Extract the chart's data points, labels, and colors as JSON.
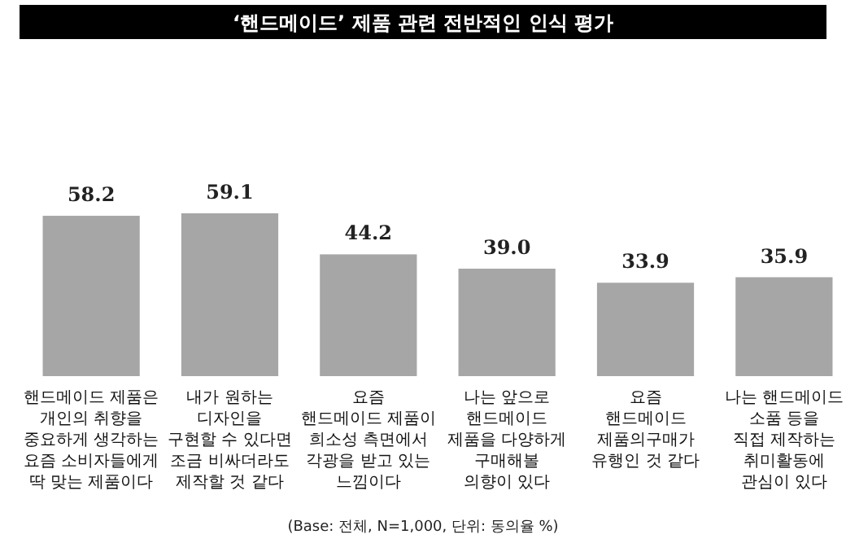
{
  "chart_data": {
    "type": "bar",
    "title": "‘핸드메이드’ 제품 관련 전반적인 인식 평가",
    "categories": [
      "핸드메이드 제품은\n개인의 취향을\n중요하게 생각하는\n요즘 소비자들에게\n딱 맞는 제품이다",
      "내가 원하는\n디자인을\n구현할 수 있다면\n조금 비싸더라도\n제작할 것 같다",
      "요즘\n핸드메이드 제품이\n희소성 측면에서\n각광을 받고 있는\n느낌이다",
      "나는 앞으로\n핸드메이드\n제품을 다양하게\n구매해볼\n의향이 있다",
      "요즘\n핸드메이드\n제품의구매가\n유행인 것 같다",
      "나는 핸드메이드\n소품 등을\n직접 제작하는\n취미활동에\n관심이 있다"
    ],
    "values": [
      58.2,
      59.1,
      44.2,
      39.0,
      33.9,
      35.9
    ],
    "value_labels": [
      "58.2",
      "59.1",
      "44.2",
      "39.0",
      "33.9",
      "35.9"
    ],
    "color": "#a6a6a6",
    "annotations": [
      "(Base: 전체, N=1,000, 단위: 동의율 %)"
    ]
  }
}
